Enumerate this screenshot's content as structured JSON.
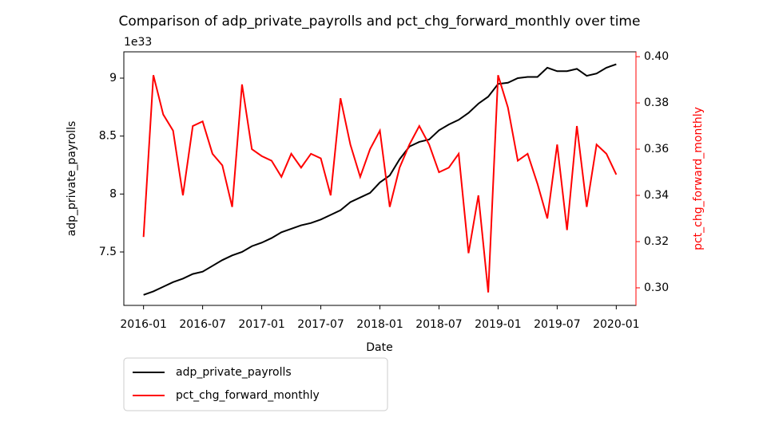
{
  "chart_data": {
    "type": "line",
    "title": "Comparison of adp_private_payrolls and pct_chg_forward_monthly over time",
    "x_label": "Date",
    "y_label": "adp_private_payrolls",
    "y2_label": "pct_chg_forward_monthly",
    "y_offset_label": "1e33",
    "x": [
      "2016-01",
      "2016-02",
      "2016-03",
      "2016-04",
      "2016-05",
      "2016-06",
      "2016-07",
      "2016-08",
      "2016-09",
      "2016-10",
      "2016-11",
      "2016-12",
      "2017-01",
      "2017-02",
      "2017-03",
      "2017-04",
      "2017-05",
      "2017-06",
      "2017-07",
      "2017-08",
      "2017-09",
      "2017-10",
      "2017-11",
      "2017-12",
      "2018-01",
      "2018-02",
      "2018-03",
      "2018-04",
      "2018-05",
      "2018-06",
      "2018-07",
      "2018-08",
      "2018-09",
      "2018-10",
      "2018-11",
      "2018-12",
      "2019-01",
      "2019-02",
      "2019-03",
      "2019-04",
      "2019-05",
      "2019-06",
      "2019-07",
      "2019-08",
      "2019-09",
      "2019-10",
      "2019-11",
      "2019-12",
      "2020-01"
    ],
    "series": [
      {
        "name": "adp_private_payrolls",
        "color": "#000000",
        "axis": "y",
        "values": [
          7.13,
          7.16,
          7.2,
          7.24,
          7.27,
          7.31,
          7.33,
          7.38,
          7.43,
          7.47,
          7.5,
          7.55,
          7.58,
          7.62,
          7.67,
          7.7,
          7.73,
          7.75,
          7.78,
          7.82,
          7.86,
          7.93,
          7.97,
          8.01,
          8.1,
          8.16,
          8.3,
          8.41,
          8.45,
          8.47,
          8.55,
          8.6,
          8.64,
          8.7,
          8.78,
          8.84,
          8.95,
          8.96,
          9.0,
          9.01,
          9.01,
          9.09,
          9.06,
          9.06,
          9.08,
          9.02,
          9.04,
          9.09,
          9.12
        ]
      },
      {
        "name": "pct_chg_forward_monthly",
        "color": "#ff0000",
        "axis": "y2",
        "values": [
          0.322,
          0.392,
          0.375,
          0.368,
          0.34,
          0.37,
          0.372,
          0.358,
          0.353,
          0.335,
          0.388,
          0.36,
          0.357,
          0.355,
          0.348,
          0.358,
          0.352,
          0.358,
          0.356,
          0.34,
          0.382,
          0.362,
          0.348,
          0.36,
          0.368,
          0.335,
          0.352,
          0.362,
          0.37,
          0.362,
          0.35,
          0.352,
          0.358,
          0.315,
          0.34,
          0.298,
          0.392,
          0.378,
          0.355,
          0.358,
          0.345,
          0.33,
          0.362,
          0.325,
          0.37,
          0.335,
          0.362,
          0.358,
          0.349
        ]
      }
    ],
    "xlim": [
      "2015-11",
      "2020-03"
    ],
    "xticks": [
      "2016-01",
      "2016-07",
      "2017-01",
      "2017-07",
      "2018-01",
      "2018-07",
      "2019-01",
      "2019-07",
      "2020-01"
    ],
    "ylim": [
      7.039,
      9.227
    ],
    "yticks": [
      7.5,
      8.0,
      8.5,
      9.0
    ],
    "y2lim": [
      0.2924,
      0.4021
    ],
    "y2ticks": [
      0.3,
      0.32,
      0.34,
      0.36,
      0.38,
      0.4
    ],
    "legend": "below"
  }
}
